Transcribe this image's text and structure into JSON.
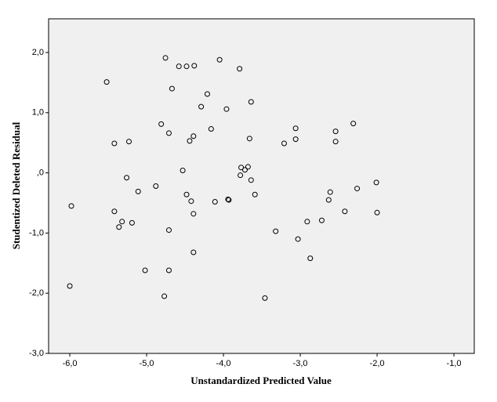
{
  "chart_data": {
    "type": "scatter",
    "xlabel": "Unstandardized Predicted Value",
    "ylabel": "Studentized Deleted Residual",
    "x": [
      -4.755,
      -4.58,
      -4.48,
      -4.38,
      -4.05,
      -3.79,
      -5.52,
      -4.67,
      -4.21,
      -3.64,
      -4.29,
      -3.96,
      -4.81,
      -4.16,
      -3.06,
      -2.31,
      -4.71,
      -2.54,
      -4.39,
      -4.44,
      -3.66,
      -3.06,
      -5.42,
      -5.23,
      -3.21,
      -2.54,
      -3.77,
      -3.68,
      -3.72,
      -4.53,
      -3.78,
      -3.64,
      -5.26,
      -4.88,
      -5.11,
      -4.48,
      -3.59,
      -2.61,
      -2.01,
      -2.26,
      -5.98,
      -4.42,
      -4.11,
      -3.94,
      -3.93,
      -2.63,
      -5.42,
      -4.39,
      -2.42,
      -2.0,
      -5.32,
      -5.19,
      -5.36,
      -2.91,
      -2.72,
      -4.71,
      -3.32,
      -3.03,
      -4.39,
      -2.87,
      -5.02,
      -4.71,
      -6.0,
      -4.77,
      -3.46
    ],
    "values": [
      1.91,
      1.77,
      1.77,
      1.78,
      1.88,
      1.73,
      1.51,
      1.4,
      1.31,
      1.18,
      1.1,
      1.06,
      0.81,
      0.73,
      0.74,
      0.82,
      0.66,
      0.69,
      0.61,
      0.53,
      0.57,
      0.56,
      0.49,
      0.52,
      0.49,
      0.52,
      0.09,
      0.1,
      0.05,
      0.04,
      -0.04,
      -0.12,
      -0.08,
      -0.22,
      -0.31,
      -0.36,
      -0.36,
      -0.32,
      -0.16,
      -0.26,
      -0.55,
      -0.47,
      -0.48,
      -0.44,
      -0.45,
      -0.45,
      -0.64,
      -0.68,
      -0.64,
      -0.66,
      -0.81,
      -0.83,
      -0.9,
      -0.81,
      -0.79,
      -0.95,
      -0.97,
      -1.1,
      -1.32,
      -1.42,
      -1.62,
      -1.62,
      -1.88,
      -2.05,
      -2.08
    ],
    "color": "#000000",
    "background": "#f0f0f0",
    "xlim": [
      -6.276,
      -0.735
    ],
    "ylim": [
      -3.0,
      2.56
    ],
    "xticks": [
      {
        "value": -6,
        "label": "-6,0"
      },
      {
        "value": -5,
        "label": "-5,0"
      },
      {
        "value": -4,
        "label": "-4,0"
      },
      {
        "value": -3,
        "label": "-3,0"
      },
      {
        "value": -2,
        "label": "-2,0"
      },
      {
        "value": -1,
        "label": "-1,0"
      }
    ],
    "yticks": [
      {
        "value": -3,
        "label": "-3,0"
      },
      {
        "value": -2,
        "label": "-2,0"
      },
      {
        "value": -1,
        "label": "-1,0"
      },
      {
        "value": 0,
        "label": ",0"
      },
      {
        "value": 1,
        "label": "1,0"
      },
      {
        "value": 2,
        "label": "2,0"
      }
    ]
  }
}
